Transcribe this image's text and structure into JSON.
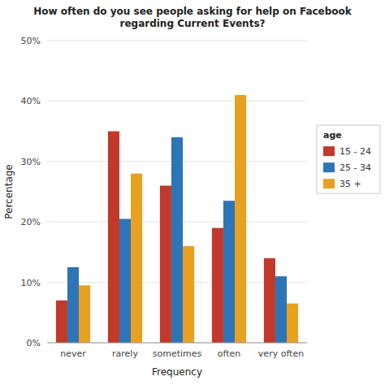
{
  "chart_data": {
    "type": "bar",
    "title": "How often do you see people asking for help on Facebook\nregarding Current Events?",
    "x_label": "Frequency",
    "y_label": "Percentage",
    "legend_title": "age",
    "categories": [
      "never",
      "rarely",
      "sometimes",
      "often",
      "very often"
    ],
    "series": [
      {
        "name": "15 - 24",
        "color": "#C0392B",
        "values": [
          7.0,
          35.0,
          26.0,
          19.0,
          14.0
        ]
      },
      {
        "name": "25 - 34",
        "color": "#2E75B6",
        "values": [
          12.5,
          20.5,
          34.0,
          23.5,
          11.0
        ]
      },
      {
        "name": "35 +",
        "color": "#E8A020",
        "values": [
          9.5,
          28.0,
          16.0,
          41.0,
          6.5
        ]
      }
    ],
    "ylim": [
      0,
      50
    ],
    "yticks": [
      {
        "value": 0,
        "label": "0%"
      },
      {
        "value": 10,
        "label": "10%"
      },
      {
        "value": 20,
        "label": "20%"
      },
      {
        "value": 30,
        "label": "30%"
      },
      {
        "value": 40,
        "label": "40%"
      },
      {
        "value": 50,
        "label": "50%"
      }
    ],
    "grid": true,
    "legend": "right"
  }
}
